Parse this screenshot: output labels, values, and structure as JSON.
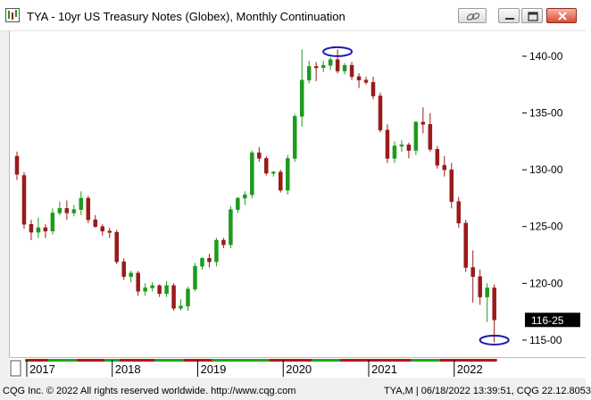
{
  "window": {
    "title": "TYA - 10yr US Treasury Notes (Globex), Monthly Continuation",
    "icons": [
      "link-icon",
      "minimize-icon",
      "maximize-icon",
      "close-icon"
    ]
  },
  "price_tag": {
    "value": "116-25",
    "numeric": 116.78
  },
  "footer": {
    "copyright": "CQG Inc. © 2022 All rights reserved worldwide. http://www.cqg.com",
    "status": "TYA,M | 06/18/2022 13:39:51, CQG 22.12.8053"
  },
  "colors": {
    "up": "#1c9b1c",
    "down": "#9a1a1a",
    "circle": "#1a1aa8",
    "bull_bar": "#1fa51f",
    "bear_bar": "#b21818"
  },
  "chart_data": {
    "type": "candlestick",
    "title": "TYA - 10yr US Treasury Notes (Globex), Monthly Continuation",
    "xlabel": "",
    "ylabel": "",
    "ylim": [
      113.5,
      142.2
    ],
    "y_ticks": [
      115,
      120,
      125,
      130,
      135,
      140
    ],
    "y_tick_labels": [
      "115-00",
      "120-00",
      "125-00",
      "130-00",
      "135-00",
      "140-00"
    ],
    "x_tick_labels": [
      "2017",
      "2018",
      "2019",
      "2020",
      "2021",
      "2022"
    ],
    "grid": false,
    "legend": "none",
    "annotations": [
      {
        "type": "ellipse",
        "month": "2020-08",
        "price": 140.4,
        "note": "circle around the 2020 high"
      },
      {
        "type": "ellipse",
        "month": "2022-06",
        "price": 115.0,
        "note": "circle around the 2022 low"
      }
    ],
    "months": [
      "2016-11",
      "2016-12",
      "2017-01",
      "2017-02",
      "2017-03",
      "2017-04",
      "2017-05",
      "2017-06",
      "2017-07",
      "2017-08",
      "2017-09",
      "2017-10",
      "2017-11",
      "2017-12",
      "2018-01",
      "2018-02",
      "2018-03",
      "2018-04",
      "2018-05",
      "2018-06",
      "2018-07",
      "2018-08",
      "2018-09",
      "2018-10",
      "2018-11",
      "2018-12",
      "2019-01",
      "2019-02",
      "2019-03",
      "2019-04",
      "2019-05",
      "2019-06",
      "2019-07",
      "2019-08",
      "2019-09",
      "2019-10",
      "2019-11",
      "2019-12",
      "2020-01",
      "2020-02",
      "2020-03",
      "2020-04",
      "2020-05",
      "2020-06",
      "2020-07",
      "2020-08",
      "2020-09",
      "2020-10",
      "2020-11",
      "2020-12",
      "2021-01",
      "2021-02",
      "2021-03",
      "2021-04",
      "2021-05",
      "2021-06",
      "2021-07",
      "2021-08",
      "2021-09",
      "2021-10",
      "2021-11",
      "2021-12",
      "2022-01",
      "2022-02",
      "2022-03",
      "2022-04",
      "2022-05",
      "2022-06"
    ],
    "open": [
      131.2,
      129.5,
      125.2,
      124.5,
      124.9,
      124.6,
      126.2,
      126.6,
      126.2,
      126.5,
      127.5,
      125.6,
      125.0,
      124.6,
      124.5,
      121.9,
      120.6,
      120.9,
      119.3,
      119.6,
      119.8,
      119.1,
      119.8,
      117.8,
      118.0,
      119.5,
      121.5,
      122.2,
      121.9,
      123.8,
      123.4,
      126.5,
      127.5,
      127.8,
      131.5,
      131.0,
      129.7,
      129.8,
      128.2,
      131.0,
      134.7,
      137.9,
      139.1,
      139.0,
      139.2,
      139.7,
      138.7,
      139.2,
      138.2,
      137.9,
      137.7,
      136.5,
      133.5,
      131.0,
      132.1,
      132.2,
      131.7,
      134.2,
      134.0,
      131.8,
      130.4,
      130.0,
      127.2,
      125.3,
      121.4,
      120.6,
      118.8,
      119.6
    ],
    "high": [
      131.6,
      129.8,
      125.6,
      125.8,
      125.2,
      126.6,
      127.2,
      127.3,
      126.9,
      128.1,
      127.7,
      126.0,
      125.2,
      124.9,
      124.7,
      122.2,
      121.1,
      121.1,
      120.0,
      120.1,
      119.9,
      120.2,
      120.0,
      118.6,
      119.7,
      121.8,
      122.3,
      122.6,
      124.0,
      124.0,
      126.8,
      127.6,
      128.1,
      131.7,
      132.0,
      131.2,
      129.9,
      130.0,
      131.3,
      134.9,
      140.6,
      139.6,
      139.5,
      139.6,
      139.9,
      140.6,
      139.4,
      139.5,
      138.5,
      138.2,
      138.2,
      136.8,
      134.0,
      132.5,
      132.6,
      132.4,
      134.3,
      135.5,
      135.0,
      132.1,
      131.2,
      130.6,
      127.6,
      125.6,
      122.9,
      121.2,
      120.0,
      119.9
    ],
    "low": [
      129.1,
      124.8,
      123.8,
      124.0,
      124.0,
      124.3,
      126.0,
      125.6,
      125.9,
      126.0,
      125.3,
      124.9,
      124.2,
      124.0,
      121.7,
      120.3,
      120.1,
      118.9,
      118.9,
      119.3,
      118.8,
      118.8,
      117.6,
      117.6,
      117.6,
      119.3,
      121.2,
      121.4,
      121.5,
      123.1,
      123.1,
      126.2,
      126.9,
      127.5,
      130.7,
      129.5,
      129.4,
      128.0,
      127.8,
      130.7,
      133.8,
      137.6,
      137.8,
      138.6,
      138.8,
      138.5,
      138.4,
      137.9,
      137.2,
      137.5,
      136.2,
      133.3,
      130.6,
      130.6,
      131.6,
      131.0,
      131.3,
      133.2,
      131.6,
      130.1,
      129.4,
      126.6,
      124.9,
      121.0,
      118.3,
      118.1,
      116.6,
      114.8
    ],
    "close": [
      129.6,
      125.2,
      124.5,
      124.9,
      124.6,
      126.2,
      126.6,
      126.2,
      126.5,
      127.5,
      125.6,
      125.0,
      124.6,
      124.5,
      121.9,
      120.6,
      120.9,
      119.3,
      119.6,
      119.8,
      119.1,
      119.8,
      117.8,
      118.0,
      119.5,
      121.5,
      122.2,
      121.9,
      123.8,
      123.4,
      126.5,
      127.5,
      127.8,
      131.5,
      131.0,
      129.7,
      129.8,
      128.2,
      131.0,
      134.7,
      137.9,
      139.1,
      139.0,
      139.2,
      139.7,
      138.7,
      139.2,
      138.2,
      137.9,
      137.7,
      136.5,
      133.5,
      131.0,
      132.1,
      132.2,
      131.7,
      134.2,
      134.0,
      131.8,
      130.4,
      130.0,
      127.2,
      125.3,
      121.4,
      120.6,
      118.8,
      119.6,
      116.78
    ],
    "time_bar": [
      {
        "from": 0,
        "to": 2,
        "color": "bull_bar"
      },
      {
        "from": 2,
        "to": 5,
        "color": "bear_bar"
      },
      {
        "from": 5,
        "to": 9,
        "color": "bull_bar"
      },
      {
        "from": 9,
        "to": 13,
        "color": "bear_bar"
      },
      {
        "from": 13,
        "to": 15,
        "color": "bull_bar"
      },
      {
        "from": 15,
        "to": 20,
        "color": "bear_bar"
      },
      {
        "from": 20,
        "to": 24,
        "color": "bull_bar"
      },
      {
        "from": 24,
        "to": 28,
        "color": "bear_bar"
      },
      {
        "from": 28,
        "to": 36,
        "color": "bull_bar"
      },
      {
        "from": 36,
        "to": 42,
        "color": "bear_bar"
      },
      {
        "from": 42,
        "to": 46,
        "color": "bull_bar"
      },
      {
        "from": 46,
        "to": 56,
        "color": "bear_bar"
      },
      {
        "from": 56,
        "to": 60,
        "color": "bull_bar"
      },
      {
        "from": 60,
        "to": 68,
        "color": "bear_bar"
      }
    ]
  }
}
